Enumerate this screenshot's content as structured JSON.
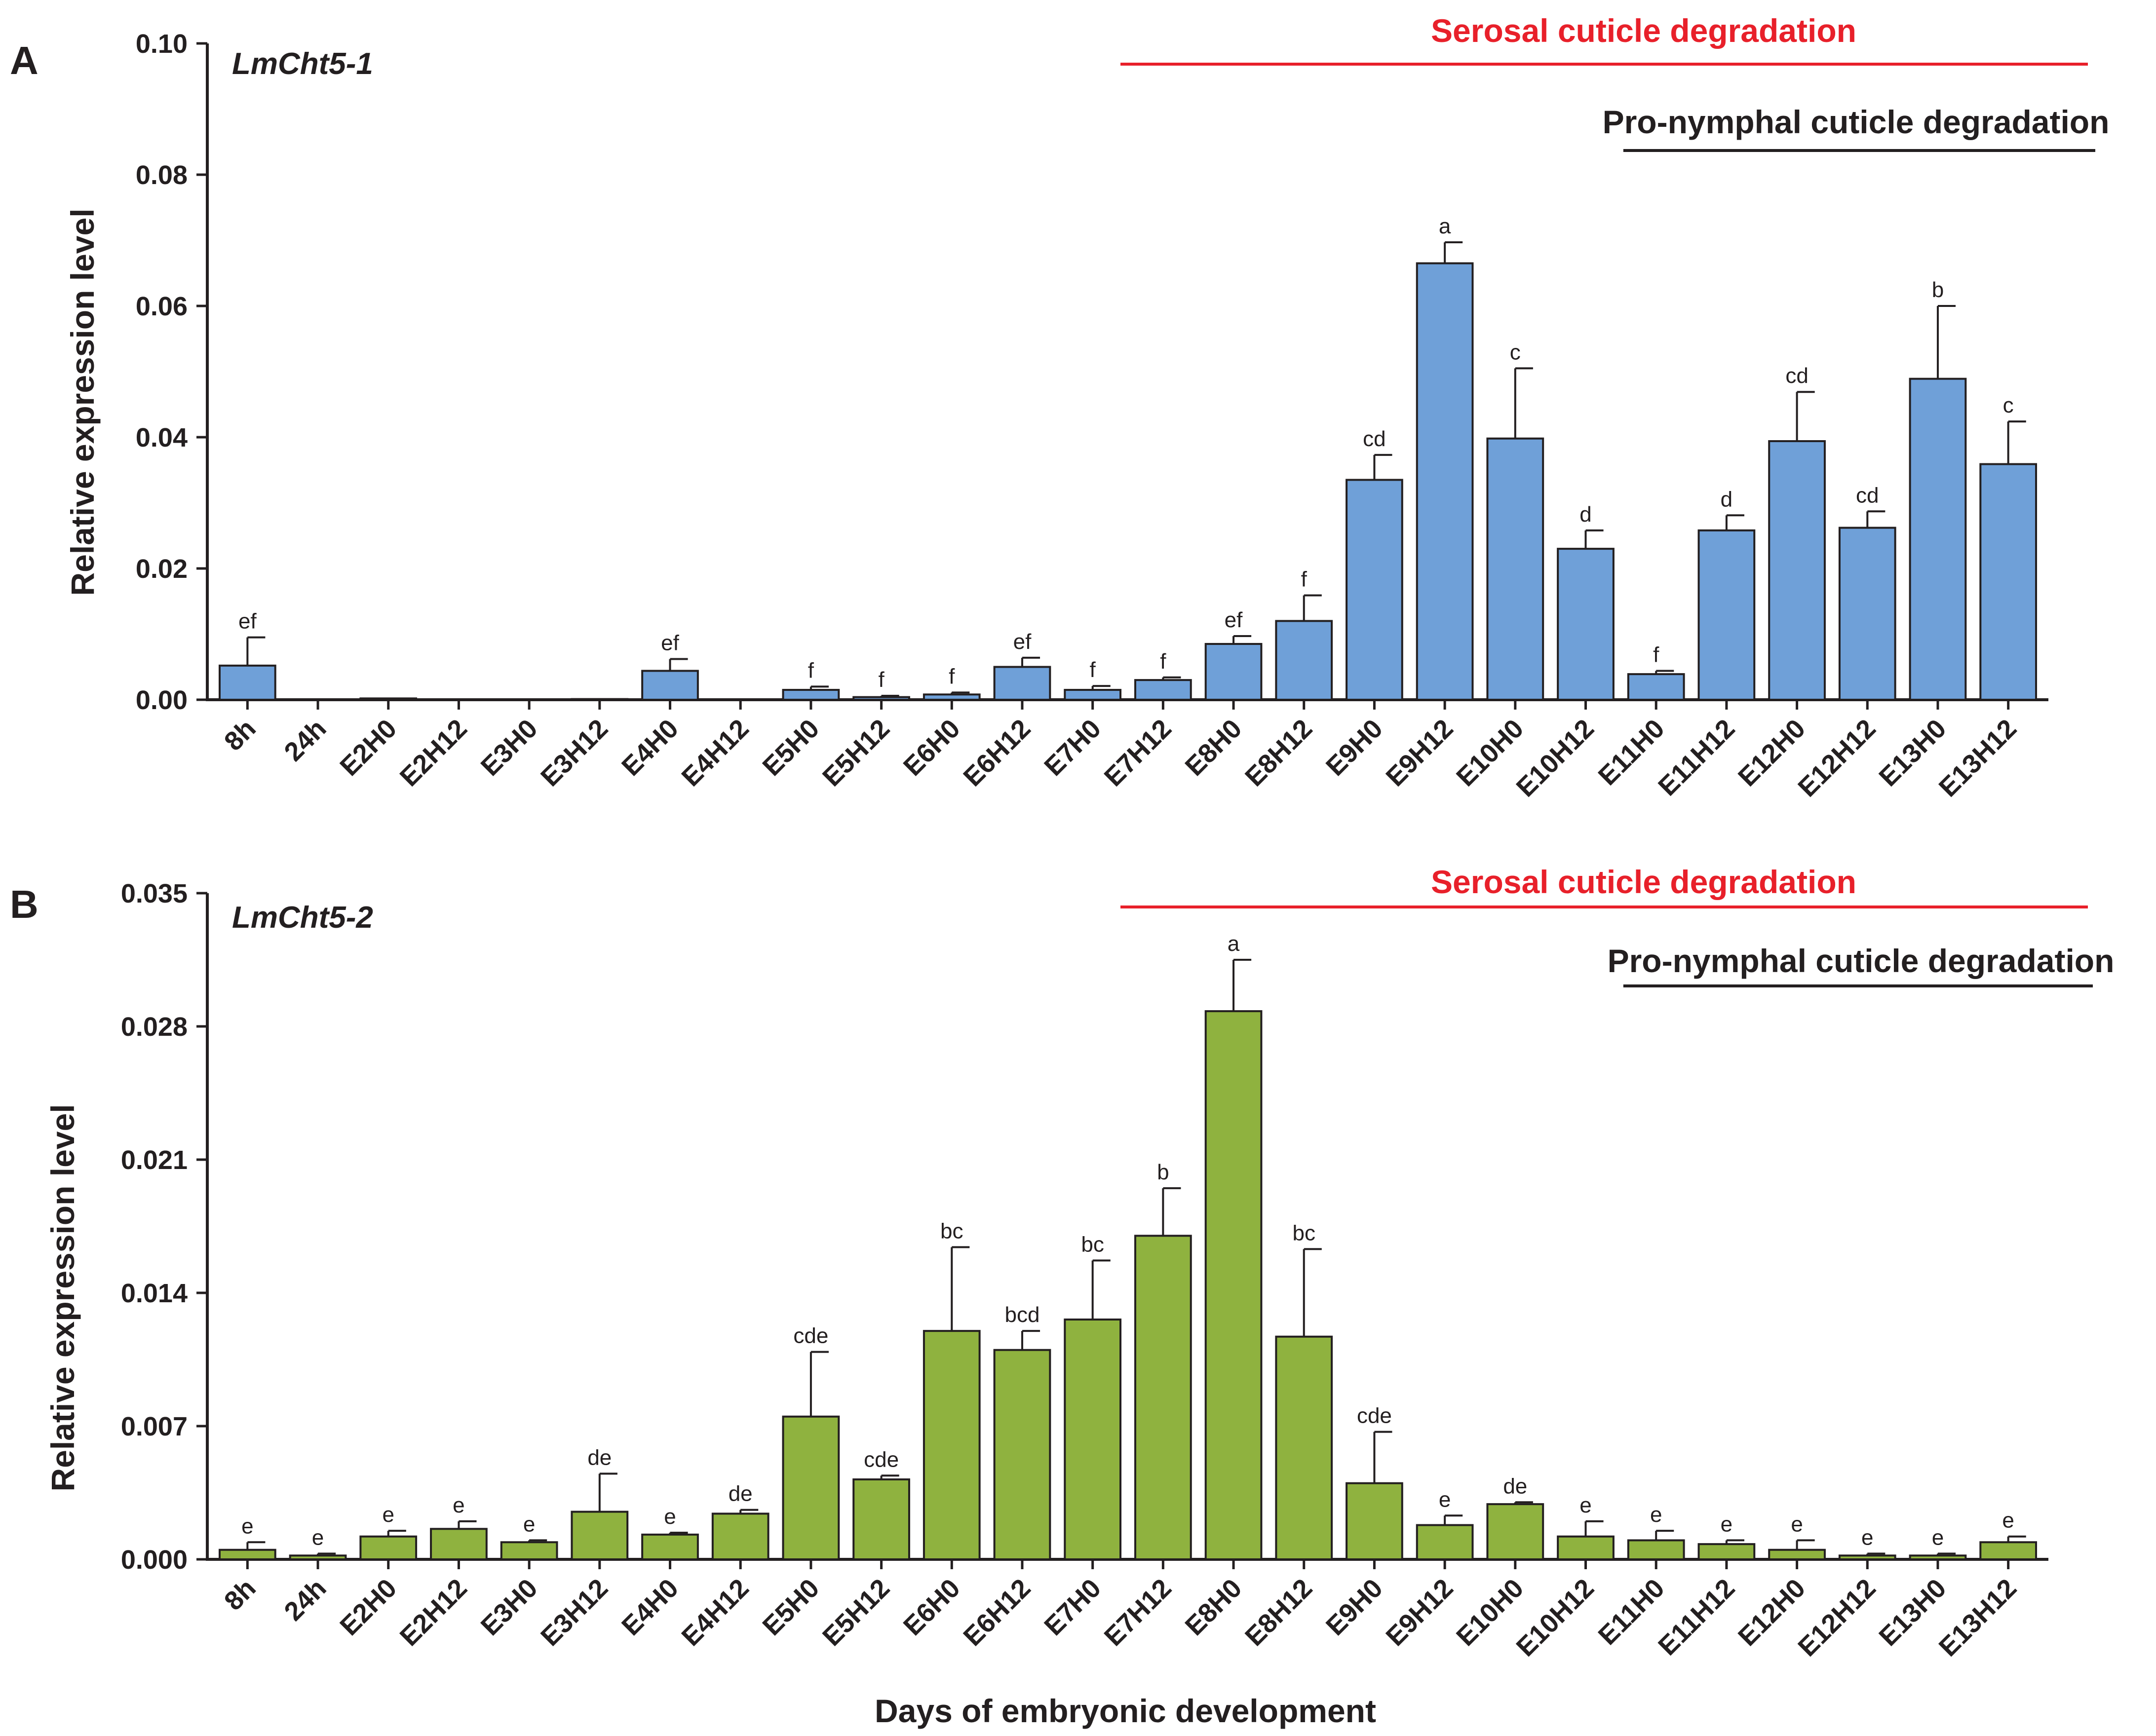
{
  "figure": {
    "xlabel": "Days of embryonic development"
  },
  "chart_data": [
    {
      "panel_label": "A",
      "type": "bar",
      "title": "LmCht5-1",
      "ylabel": "Relative expression level",
      "ylim": [
        0,
        0.1
      ],
      "yticks": [
        "0.00",
        "0.02",
        "0.04",
        "0.06",
        "0.08",
        "0.10"
      ],
      "ytick_values": [
        0,
        0.02,
        0.04,
        0.06,
        0.08,
        0.1
      ],
      "bar_color": "#6fa0d8",
      "categories": [
        "8h",
        "24h",
        "E2H0",
        "E2H12",
        "E3H0",
        "E3H12",
        "E4H0",
        "E4H12",
        "E5H0",
        "E5H12",
        "E6H0",
        "E6H12",
        "E7H0",
        "E7H12",
        "E8H0",
        "E8H12",
        "E9H0",
        "E9H12",
        "E10H0",
        "E10H12",
        "E11H0",
        "E11H12",
        "E12H0",
        "E12H12",
        "E13H0",
        "E13H12"
      ],
      "values": [
        0.0052,
        0,
        0.0002,
        0,
        0,
        0.0001,
        0.0044,
        0,
        0.0015,
        0.0004,
        0.0008,
        0.005,
        0.0015,
        0.003,
        0.0085,
        0.012,
        0.0335,
        0.0665,
        0.0398,
        0.023,
        0.0039,
        0.0258,
        0.0394,
        0.0262,
        0.0489,
        0.0359
      ],
      "errors": [
        0.0043,
        0,
        0,
        0,
        0,
        0,
        0.0018,
        0,
        0.0005,
        0.0002,
        0.0003,
        0.0014,
        0.0006,
        0.0004,
        0.0012,
        0.0039,
        0.0038,
        0.0032,
        0.0107,
        0.0028,
        0.0005,
        0.0023,
        0.0075,
        0.0025,
        0.0111,
        0.0065
      ],
      "significance": [
        "ef",
        "",
        "",
        "",
        "",
        "",
        "ef",
        "",
        "f",
        "f",
        "f",
        "ef",
        "f",
        "f",
        "ef",
        "f",
        "cd",
        "a",
        "c",
        "d",
        "f",
        "d",
        "cd",
        "cd",
        "b",
        "c"
      ],
      "annotations": [
        {
          "text": "Serosal cuticle degradation",
          "color": "#e8202a",
          "from": "E7H0",
          "to": "E13H12"
        },
        {
          "text": "Pro-nymphal cuticle degradation",
          "color": "#231f20",
          "from": "E11H0",
          "to": "E13H12"
        }
      ]
    },
    {
      "panel_label": "B",
      "type": "bar",
      "title": "LmCht5-2",
      "ylabel": "Relative expression level",
      "ylim": [
        0,
        0.035
      ],
      "yticks": [
        "0.000",
        "0.007",
        "0.014",
        "0.021",
        "0.028",
        "0.035"
      ],
      "ytick_values": [
        0,
        0.007,
        0.014,
        0.021,
        0.028,
        0.035
      ],
      "bar_color": "#8fb23f",
      "categories": [
        "8h",
        "24h",
        "E2H0",
        "E2H12",
        "E3H0",
        "E3H12",
        "E4H0",
        "E4H12",
        "E5H0",
        "E5H12",
        "E6H0",
        "E6H12",
        "E7H0",
        "E7H12",
        "E8H0",
        "E8H12",
        "E9H0",
        "E9H12",
        "E10H0",
        "E10H12",
        "E11H0",
        "E11H12",
        "E12H0",
        "E12H12",
        "E13H0",
        "E13H12"
      ],
      "values": [
        0.0005,
        0.0002,
        0.0012,
        0.0016,
        0.0009,
        0.0025,
        0.0013,
        0.0024,
        0.0075,
        0.0042,
        0.012,
        0.011,
        0.0126,
        0.017,
        0.0288,
        0.0117,
        0.004,
        0.0018,
        0.0029,
        0.0012,
        0.001,
        0.0008,
        0.0005,
        0.0002,
        0.0002,
        0.0009
      ],
      "errors": [
        0.0004,
        0.0001,
        0.0003,
        0.0004,
        0.0001,
        0.002,
        0.0001,
        0.0002,
        0.0034,
        0.0002,
        0.0044,
        0.001,
        0.0031,
        0.0025,
        0.0027,
        0.0046,
        0.0027,
        0.0005,
        0.0001,
        0.0008,
        0.0005,
        0.0002,
        0.0005,
        0.0001,
        0.0001,
        0.0003
      ],
      "significance": [
        "e",
        "e",
        "e",
        "e",
        "e",
        "de",
        "e",
        "de",
        "cde",
        "cde",
        "bc",
        "bcd",
        "bc",
        "b",
        "a",
        "bc",
        "cde",
        "e",
        "de",
        "e",
        "e",
        "e",
        "e",
        "e",
        "e",
        "e"
      ],
      "annotations": [
        {
          "text": "Serosal cuticle degradation",
          "color": "#e8202a",
          "from": "E7H0",
          "to": "E13H12"
        },
        {
          "text": "Pro-nymphal cuticle degradation",
          "color": "#231f20",
          "from": "E11H0",
          "to": "E13H12"
        }
      ]
    }
  ]
}
